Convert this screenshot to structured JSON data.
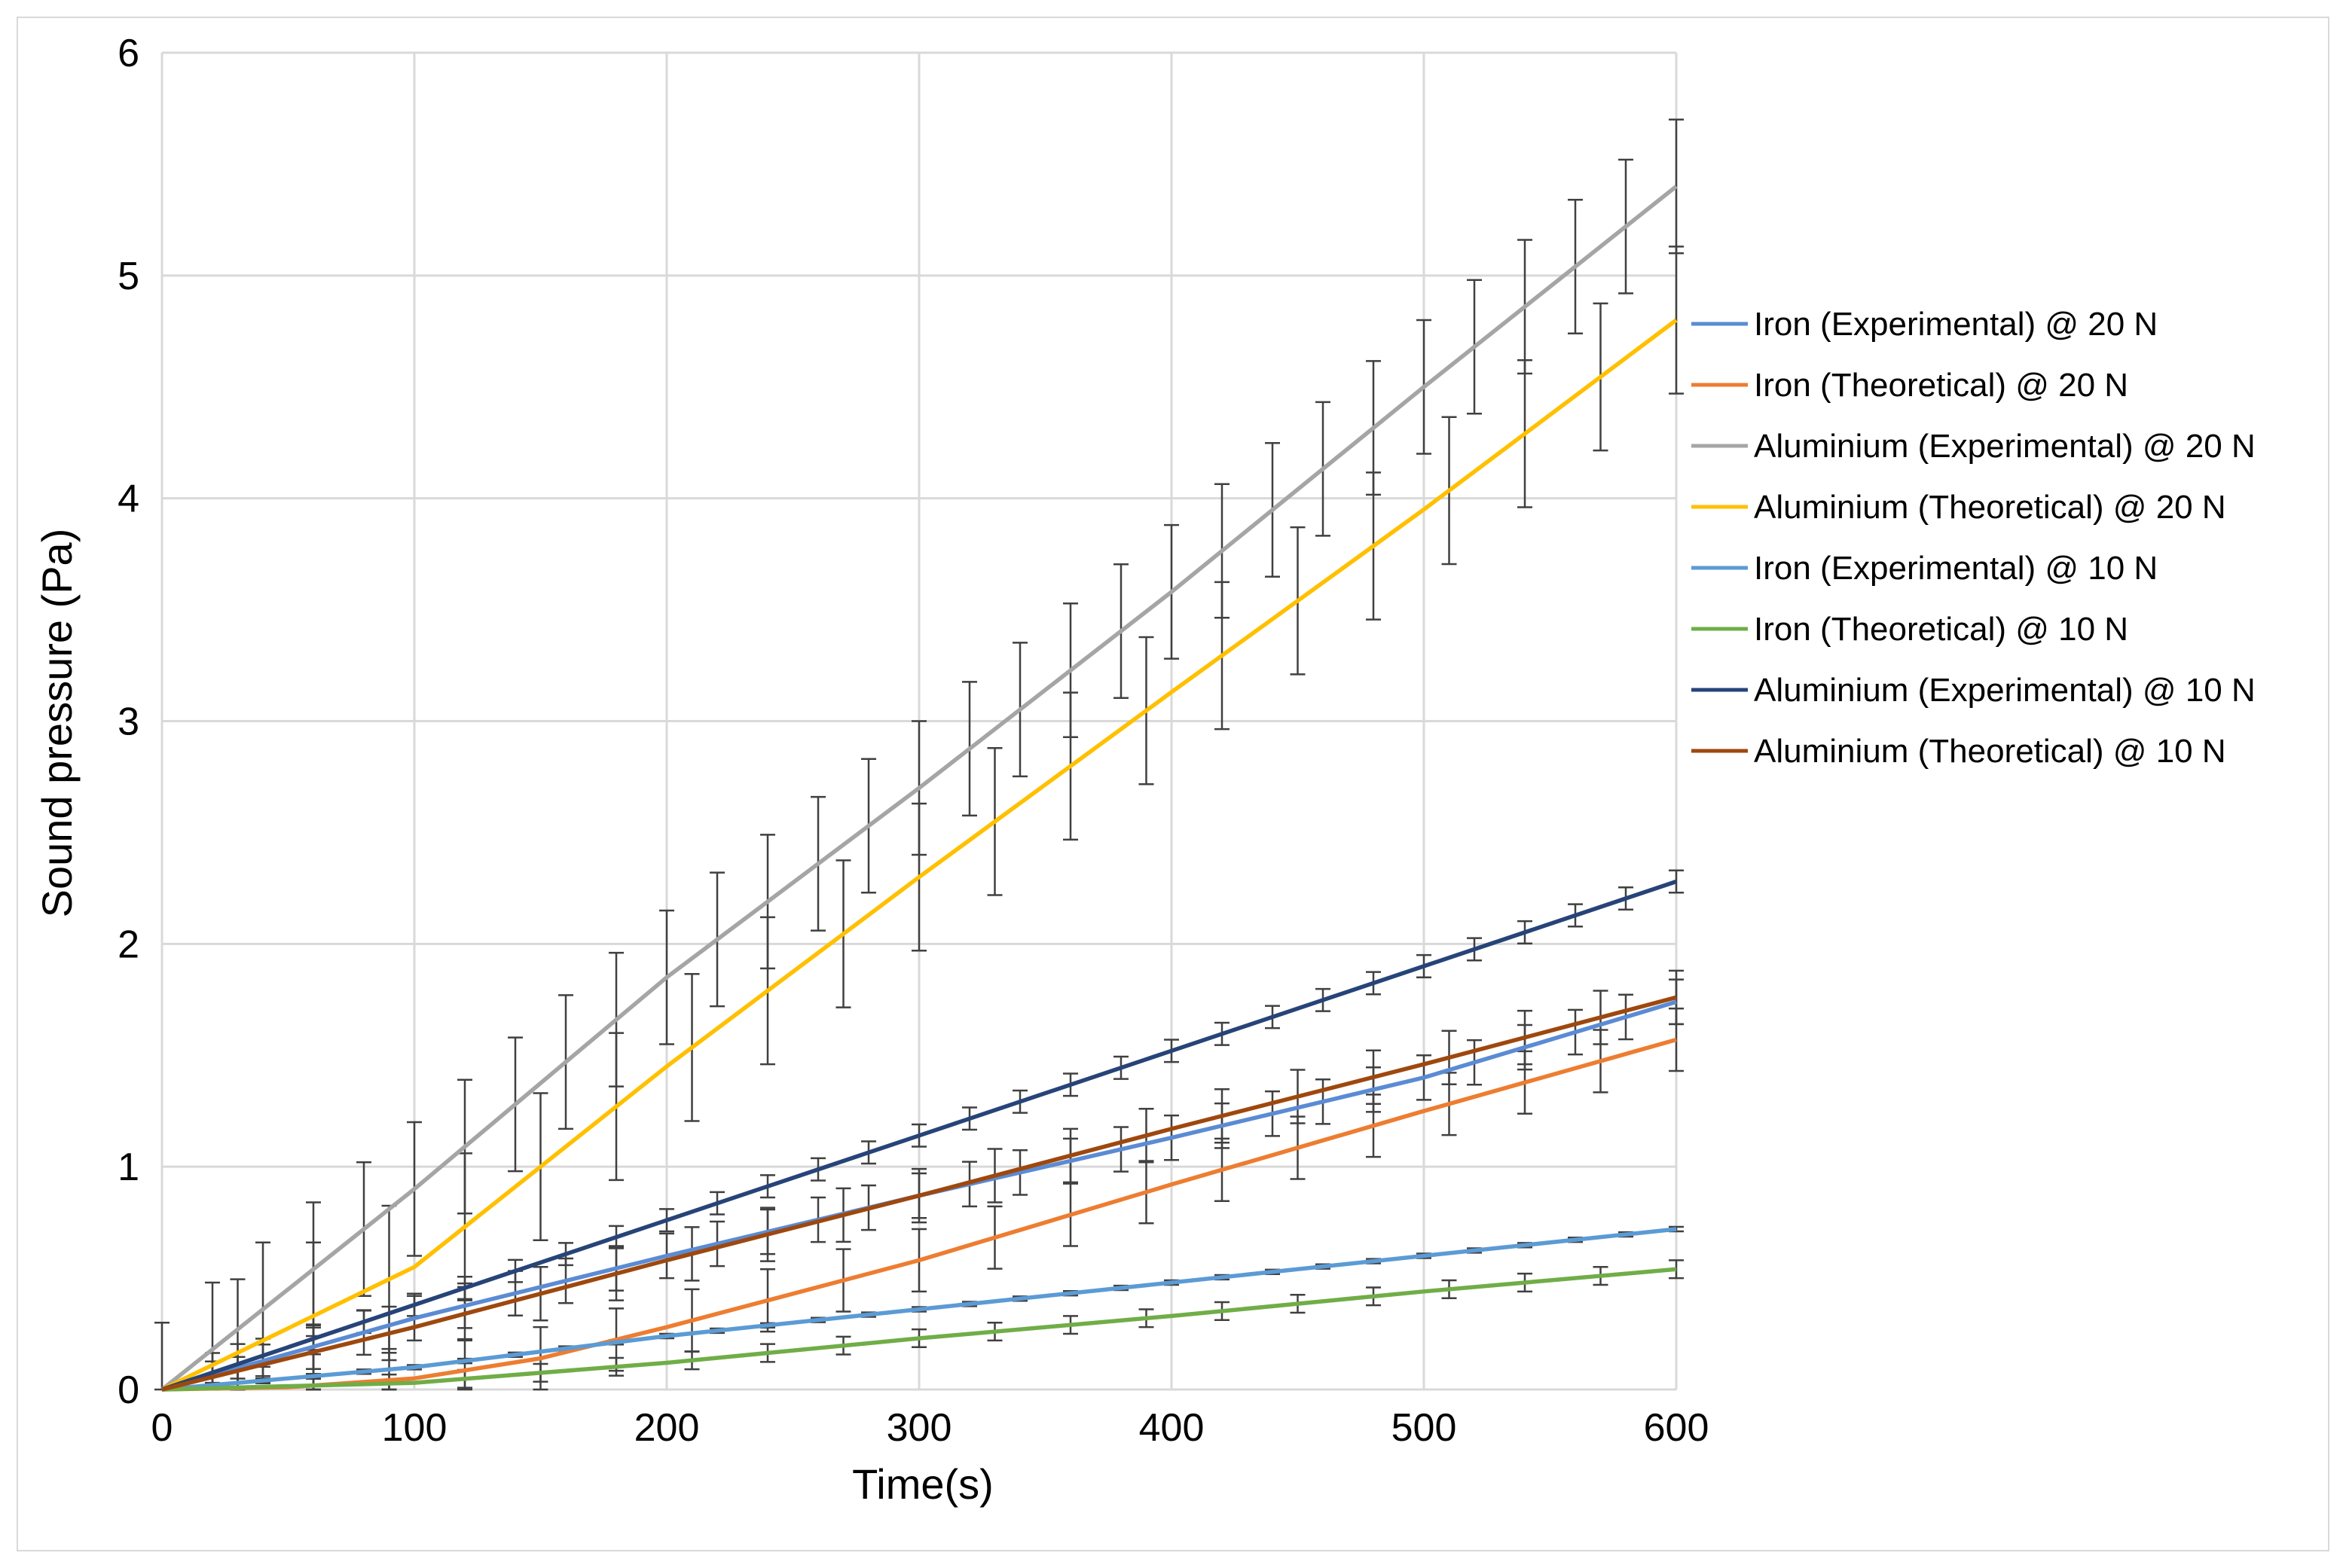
{
  "chart_data": {
    "type": "line",
    "title": "",
    "xlabel": "Time(s)",
    "ylabel": "Sound pressure (Pa)",
    "xlim": [
      0,
      600
    ],
    "ylim": [
      0,
      6
    ],
    "xticks": [
      0,
      100,
      200,
      300,
      400,
      500,
      600
    ],
    "yticks": [
      0,
      1,
      2,
      3,
      4,
      5,
      6
    ],
    "grid": true,
    "legend_position": "right",
    "series": [
      {
        "name": "Iron (Experimental) @ 20 N",
        "color": "#5b8bd4",
        "points": [
          [
            0,
            0
          ],
          [
            100,
            0.32
          ],
          [
            200,
            0.6
          ],
          [
            300,
            0.87
          ],
          [
            400,
            1.13
          ],
          [
            500,
            1.4
          ],
          [
            600,
            1.74
          ]
        ],
        "error_x": [
          20,
          40,
          60,
          80,
          100,
          120,
          140,
          160,
          180,
          200,
          220,
          240,
          260,
          280,
          300,
          320,
          340,
          360,
          380,
          400,
          420,
          440,
          460,
          480,
          500,
          520,
          540,
          560,
          580,
          600
        ],
        "error": 0.1
      },
      {
        "name": "Iron (Theoretical) @ 20 N",
        "color": "#ed7d31",
        "points": [
          [
            0,
            0
          ],
          [
            50,
            0.01
          ],
          [
            100,
            0.05
          ],
          [
            150,
            0.14
          ],
          [
            200,
            0.28
          ],
          [
            300,
            0.58
          ],
          [
            400,
            0.92
          ],
          [
            500,
            1.25
          ],
          [
            600,
            1.57
          ]
        ],
        "error_x": [
          30,
          60,
          90,
          120,
          150,
          180,
          210,
          240,
          270,
          300,
          330,
          360,
          390,
          420,
          450,
          480,
          510,
          540,
          570,
          600
        ],
        "error": 0.14
      },
      {
        "name": "Aluminium (Experimental) @ 20 N",
        "color": "#a5a5a5",
        "points": [
          [
            0,
            0
          ],
          [
            100,
            0.9
          ],
          [
            200,
            1.85
          ],
          [
            300,
            2.7
          ],
          [
            400,
            3.58
          ],
          [
            500,
            4.5
          ],
          [
            600,
            5.4
          ]
        ],
        "error_x": [
          0,
          20,
          40,
          60,
          80,
          100,
          120,
          140,
          160,
          180,
          200,
          220,
          240,
          260,
          280,
          300,
          320,
          340,
          360,
          380,
          400,
          420,
          440,
          460,
          480,
          500,
          520,
          540,
          560,
          580,
          600
        ],
        "error": 0.3
      },
      {
        "name": "Aluminium (Theoretical) @ 20 N",
        "color": "#ffc000",
        "points": [
          [
            0,
            0
          ],
          [
            100,
            0.55
          ],
          [
            200,
            1.45
          ],
          [
            300,
            2.3
          ],
          [
            400,
            3.13
          ],
          [
            500,
            3.95
          ],
          [
            600,
            4.8
          ]
        ],
        "error_x": [
          30,
          60,
          90,
          120,
          150,
          180,
          210,
          240,
          270,
          300,
          330,
          360,
          390,
          420,
          450,
          480,
          510,
          540,
          570,
          600
        ],
        "error": 0.33
      },
      {
        "name": "Iron (Experimental) @ 10 N",
        "color": "#5b9bd5",
        "points": [
          [
            0,
            0
          ],
          [
            100,
            0.1
          ],
          [
            200,
            0.24
          ],
          [
            300,
            0.36
          ],
          [
            400,
            0.48
          ],
          [
            500,
            0.6
          ],
          [
            600,
            0.72
          ]
        ],
        "error_x": [
          20,
          40,
          60,
          80,
          100,
          120,
          140,
          160,
          180,
          200,
          220,
          240,
          260,
          280,
          300,
          320,
          340,
          360,
          380,
          400,
          420,
          440,
          460,
          480,
          500,
          520,
          540,
          560,
          580,
          600
        ],
        "error": 0.01
      },
      {
        "name": "Iron (Theoretical) @ 10 N",
        "color": "#70ad47",
        "points": [
          [
            0,
            0
          ],
          [
            100,
            0.03
          ],
          [
            200,
            0.12
          ],
          [
            300,
            0.23
          ],
          [
            400,
            0.33
          ],
          [
            500,
            0.44
          ],
          [
            600,
            0.54
          ]
        ],
        "error_x": [
          30,
          60,
          90,
          120,
          150,
          180,
          210,
          240,
          270,
          300,
          330,
          360,
          390,
          420,
          450,
          480,
          510,
          540,
          570,
          600
        ],
        "error": 0.04
      },
      {
        "name": "Aluminium (Experimental) @ 10 N",
        "color": "#264478",
        "points": [
          [
            0,
            0
          ],
          [
            100,
            0.38
          ],
          [
            200,
            0.76
          ],
          [
            300,
            1.14
          ],
          [
            400,
            1.52
          ],
          [
            500,
            1.9
          ],
          [
            600,
            2.28
          ]
        ],
        "error_x": [
          20,
          40,
          60,
          80,
          100,
          120,
          140,
          160,
          180,
          200,
          220,
          240,
          260,
          280,
          300,
          320,
          340,
          360,
          380,
          400,
          420,
          440,
          460,
          480,
          500,
          520,
          540,
          560,
          580,
          600
        ],
        "error": 0.05
      },
      {
        "name": "Aluminium (Theoretical) @ 10 N",
        "color": "#9e480e",
        "points": [
          [
            0,
            0
          ],
          [
            100,
            0.28
          ],
          [
            200,
            0.58
          ],
          [
            300,
            0.87
          ],
          [
            400,
            1.17
          ],
          [
            500,
            1.46
          ],
          [
            600,
            1.76
          ]
        ],
        "error_x": [
          30,
          60,
          90,
          120,
          150,
          180,
          210,
          240,
          270,
          300,
          330,
          360,
          390,
          420,
          450,
          480,
          510,
          540,
          570,
          600
        ],
        "error": 0.12
      }
    ]
  }
}
